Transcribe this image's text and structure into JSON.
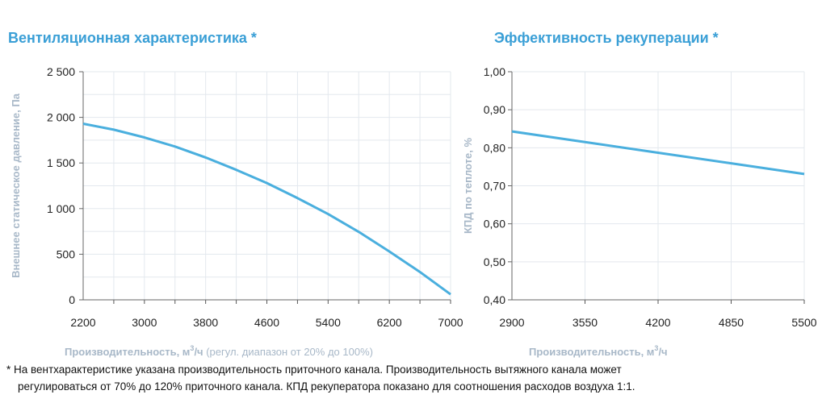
{
  "colors": {
    "accent": "#3a9fd6",
    "curve": "#4aafde",
    "axis_label": "#a8b8c8",
    "grid": "#e3e8ee"
  },
  "chart_data": [
    {
      "type": "line",
      "title": "Вентиляционная характеристика *",
      "xlabel_bold": "Производительность, м",
      "xlabel_unit": "/ч",
      "xlabel_extra": "(регул. диапазон от 20% до 100%)",
      "ylabel": "Внешнее статическое давление, Па",
      "xlim": [
        2200,
        7000
      ],
      "ylim": [
        0,
        2500
      ],
      "xticks": [
        "2200",
        "3000",
        "3800",
        "4600",
        "5400",
        "6200",
        "7000"
      ],
      "yticks": [
        "0",
        "500",
        "1 000",
        "1 500",
        "2 000",
        "2 500"
      ],
      "grid": true,
      "x": [
        2200,
        2600,
        3000,
        3400,
        3800,
        4200,
        4600,
        5000,
        5400,
        5800,
        6200,
        6600,
        7000
      ],
      "values": [
        1930,
        1865,
        1780,
        1680,
        1560,
        1425,
        1280,
        1115,
        940,
        745,
        530,
        305,
        60
      ]
    },
    {
      "type": "line",
      "title": "Эффективность рекуперации *",
      "xlabel_bold": "Производительность, м",
      "xlabel_unit": "/ч",
      "ylabel": "КПД по теплоте, %",
      "xlim": [
        2900,
        5500
      ],
      "ylim": [
        0.4,
        1.0
      ],
      "xticks": [
        "2900",
        "3550",
        "4200",
        "4850",
        "5500"
      ],
      "yticks": [
        "0,40",
        "0,50",
        "0,60",
        "0,70",
        "0,80",
        "0,90",
        "1,00"
      ],
      "grid": true,
      "x": [
        2900,
        3550,
        4200,
        4850,
        5500
      ],
      "values": [
        0.843,
        0.815,
        0.787,
        0.759,
        0.731
      ]
    }
  ],
  "footnote": {
    "line1": "* На вентхарактеристике указана производительность приточного канала. Производительность вытяжного канала может",
    "line2": "регулироваться от 70% до 120% приточного канала. КПД рекуператора показано для соотношения расходов воздуха 1:1."
  }
}
